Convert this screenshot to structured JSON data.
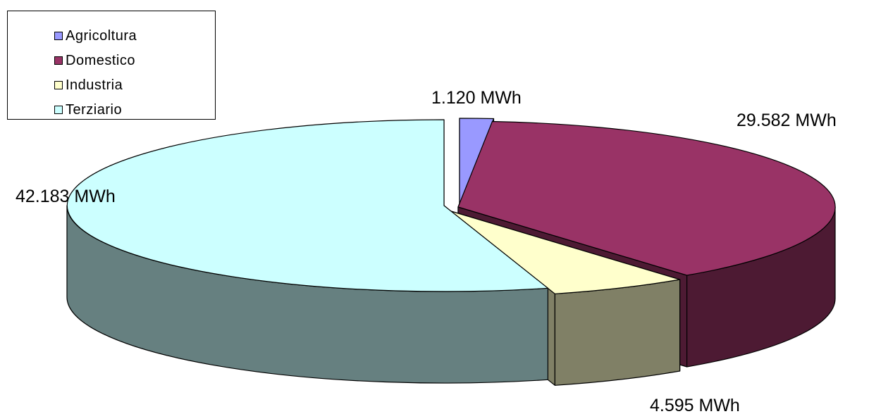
{
  "chart_data": {
    "type": "pie",
    "title": "",
    "legend_placement": "top-left",
    "categories": [
      "Agricoltura",
      "Domestico",
      "Industria",
      "Terziario"
    ],
    "values": [
      1120,
      29582,
      4595,
      42183
    ],
    "labels": [
      "1.120 MWh",
      "29.582 MWh",
      "4.595 MWh",
      "42.183 MWh"
    ],
    "colors": [
      "#9999FF",
      "#993366",
      "#FFFFCC",
      "#CCFFFF"
    ],
    "side_colors": [
      "#4D4D80",
      "#4D1A33",
      "#808066",
      "#668080"
    ]
  }
}
